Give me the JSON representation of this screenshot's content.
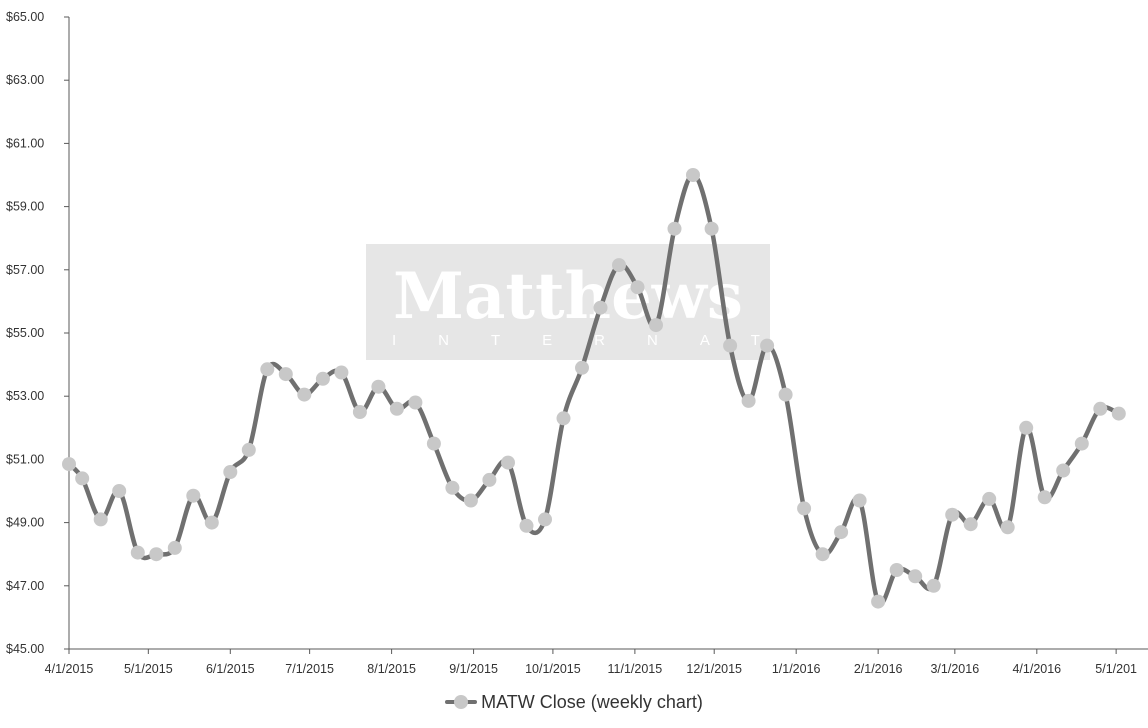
{
  "watermark": {
    "name": "Matthews",
    "subtitle": "INTERNATIONAL"
  },
  "colors": {
    "line": "#707070",
    "marker": "#c8c8c8",
    "axis": "#595959",
    "watermark_bg": "#e6e6e6"
  },
  "chart_data": {
    "type": "line",
    "title": "",
    "xlabel": "",
    "ylabel": "",
    "ylim": [
      45,
      65
    ],
    "y_ticks": [
      45,
      47,
      49,
      51,
      53,
      55,
      57,
      59,
      61,
      63,
      65
    ],
    "y_tick_labels": [
      "$45.00",
      "$47.00",
      "$49.00",
      "$51.00",
      "$53.00",
      "$55.00",
      "$57.00",
      "$59.00",
      "$61.00",
      "$63.00",
      "$65.00"
    ],
    "x_ticks": [
      "2015-04-01",
      "2015-05-01",
      "2015-06-01",
      "2015-07-01",
      "2015-08-01",
      "2015-09-01",
      "2015-10-01",
      "2015-11-01",
      "2015-12-01",
      "2016-01-01",
      "2016-02-01",
      "2016-03-01",
      "2016-04-01",
      "2016-05-01"
    ],
    "x_tick_labels": [
      "4/1/2015",
      "5/1/2015",
      "6/1/2015",
      "7/1/2015",
      "8/1/2015",
      "9/1/2015",
      "10/1/2015",
      "11/1/2015",
      "12/1/2015",
      "1/1/2016",
      "2/1/2016",
      "3/1/2016",
      "4/1/2016",
      "5/1/201"
    ],
    "xlim": [
      "2015-04-01",
      "2016-05-07"
    ],
    "grid": false,
    "legend": "bottom",
    "series": [
      {
        "name": "MATW Close (weekly chart)",
        "x": [
          "2015-04-01",
          "2015-04-06",
          "2015-04-13",
          "2015-04-20",
          "2015-04-27",
          "2015-05-04",
          "2015-05-11",
          "2015-05-18",
          "2015-05-25",
          "2015-06-01",
          "2015-06-08",
          "2015-06-15",
          "2015-06-22",
          "2015-06-29",
          "2015-07-06",
          "2015-07-13",
          "2015-07-20",
          "2015-07-27",
          "2015-08-03",
          "2015-08-10",
          "2015-08-17",
          "2015-08-24",
          "2015-08-31",
          "2015-09-07",
          "2015-09-14",
          "2015-09-21",
          "2015-09-28",
          "2015-10-05",
          "2015-10-12",
          "2015-10-19",
          "2015-10-26",
          "2015-11-02",
          "2015-11-09",
          "2015-11-16",
          "2015-11-23",
          "2015-11-30",
          "2015-12-07",
          "2015-12-14",
          "2015-12-21",
          "2015-12-28",
          "2016-01-04",
          "2016-01-11",
          "2016-01-18",
          "2016-01-25",
          "2016-02-01",
          "2016-02-08",
          "2016-02-15",
          "2016-02-22",
          "2016-02-29",
          "2016-03-07",
          "2016-03-14",
          "2016-03-21",
          "2016-03-28",
          "2016-04-04",
          "2016-04-11",
          "2016-04-18",
          "2016-04-25",
          "2016-05-02"
        ],
        "y": [
          50.85,
          50.4,
          49.1,
          50.0,
          48.05,
          48.0,
          48.2,
          49.85,
          49.0,
          50.6,
          51.3,
          53.85,
          53.7,
          53.05,
          53.55,
          53.75,
          52.5,
          53.3,
          52.6,
          52.8,
          51.5,
          50.1,
          49.7,
          50.35,
          50.9,
          48.9,
          49.1,
          52.3,
          53.9,
          55.8,
          57.15,
          56.45,
          55.25,
          58.3,
          60.0,
          58.3,
          54.6,
          52.85,
          54.6,
          53.05,
          49.45,
          48.0,
          48.7,
          49.7,
          46.5,
          47.5,
          47.3,
          47.0,
          49.25,
          48.95,
          49.75,
          48.85,
          52.0,
          49.8,
          50.65,
          51.5,
          52.6,
          52.45
        ]
      }
    ]
  }
}
